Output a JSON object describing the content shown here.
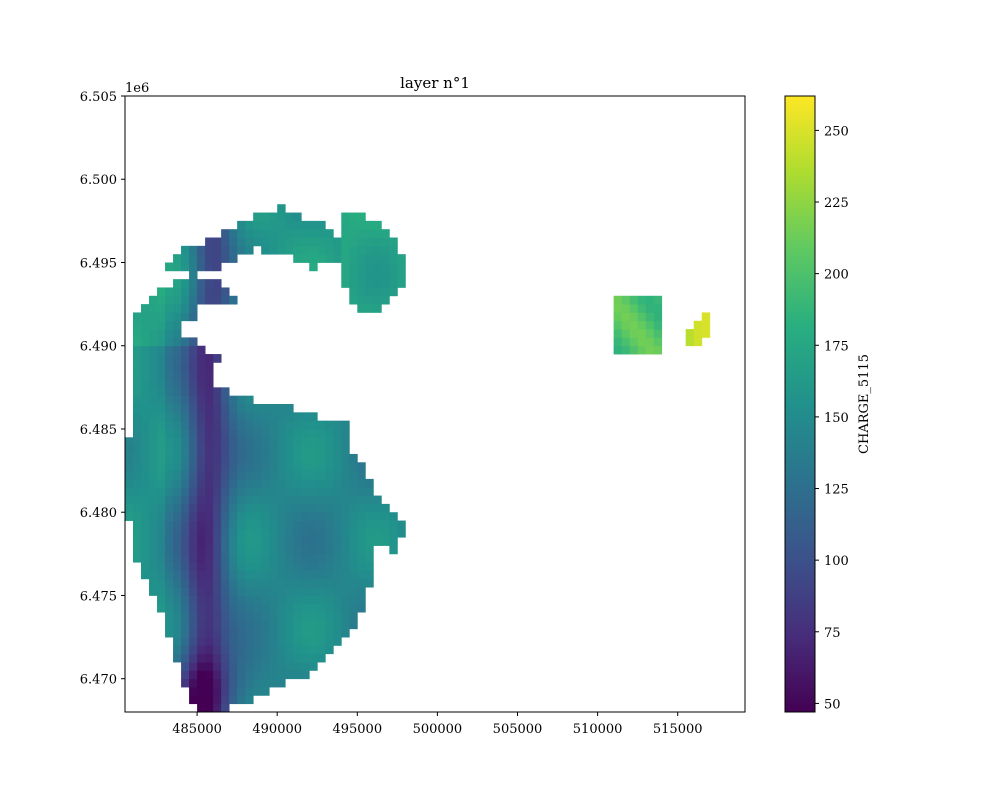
{
  "chart_data": {
    "type": "heatmap",
    "title": "layer n°1",
    "xlabel": "",
    "ylabel": "",
    "y_offset_label": "1e6",
    "xlim": [
      480500,
      519200
    ],
    "ylim": [
      6468000,
      6505000
    ],
    "x_ticks": [
      485000,
      490000,
      495000,
      500000,
      505000,
      510000,
      515000
    ],
    "x_tick_labels": [
      "485000",
      "490000",
      "495000",
      "500000",
      "505000",
      "510000",
      "515000"
    ],
    "y_ticks": [
      6470000,
      6475000,
      6480000,
      6485000,
      6490000,
      6495000,
      6500000,
      6505000
    ],
    "y_tick_labels": [
      "6.470",
      "6.475",
      "6.480",
      "6.485",
      "6.490",
      "6.495",
      "6.500",
      "6.505"
    ],
    "grid": false,
    "colormap": "viridis",
    "colorbar": {
      "label": "CHARGE_5115",
      "range": [
        47,
        262
      ],
      "ticks": [
        50,
        75,
        100,
        125,
        150,
        175,
        200,
        225,
        250
      ],
      "tick_labels": [
        "50",
        "75",
        "100",
        "125",
        "150",
        "175",
        "200",
        "225",
        "250"
      ]
    },
    "cell_size": 500,
    "regions": [
      {
        "name": "",
        "x0": 480500,
        "x1": 498000,
        "y0": 6467900,
        "y1": 6498900,
        "description": "main raster body with values approximately 47 to 190"
      },
      {
        "name": "",
        "x0": 511000,
        "x1": 514000,
        "y0": 6489600,
        "y1": 6492900,
        "value_approx": 200
      },
      {
        "name": "",
        "x0": 515500,
        "x1": 517200,
        "y0": 6489700,
        "y1": 6492100,
        "value_approx": 240
      }
    ]
  }
}
